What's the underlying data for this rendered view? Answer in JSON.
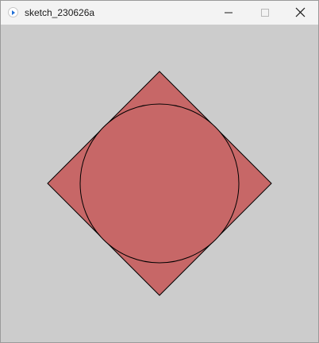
{
  "window": {
    "title": "sketch_230626a",
    "icon": "processing-app-icon"
  },
  "controls": {
    "minimize_icon": "minimize-icon",
    "maximize_icon": "maximize-icon",
    "close_icon": "close-icon"
  },
  "canvas": {
    "background_color": "#cccccc",
    "diamond": {
      "fill": "#c76767",
      "stroke": "#000000"
    },
    "circle": {
      "fill": "#c76767",
      "stroke": "#000000"
    }
  }
}
